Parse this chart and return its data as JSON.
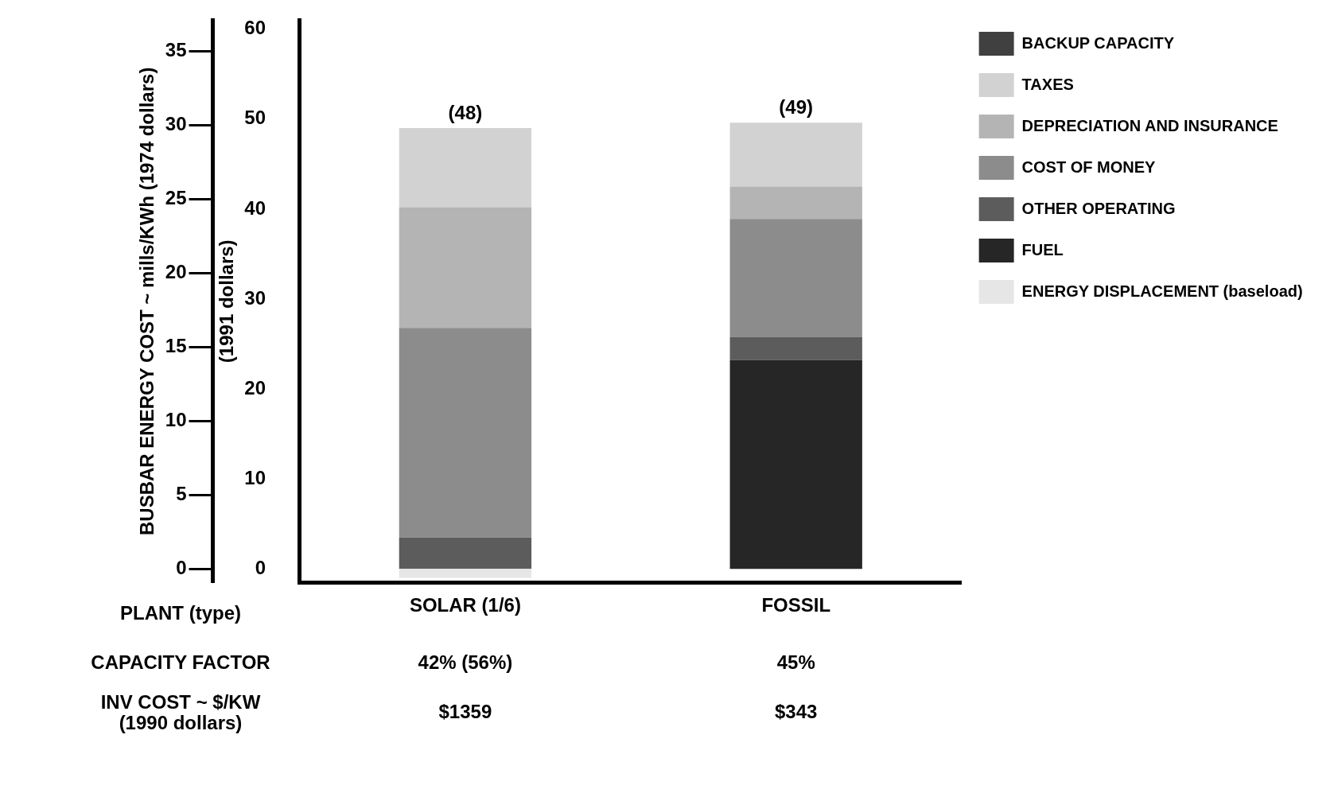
{
  "chart_data": {
    "type": "bar",
    "stacked": true,
    "categories": [
      "SOLAR (1/6)",
      "FOSSIL"
    ],
    "xlabel": "PLANT (type)",
    "ylabel": "(1991 dollars)",
    "y2label": "BUSBAR ENERGY COST ~ mills/KWh (1974 dollars)",
    "ylim": [
      -1.5,
      61
    ],
    "yticks": [
      0,
      10,
      20,
      30,
      40,
      50,
      60
    ],
    "y2lim": [
      -0.9,
      37.1
    ],
    "y2ticks": [
      0,
      5,
      10,
      15,
      20,
      25,
      30,
      35
    ],
    "series": [
      {
        "name": "ENERGY DISPLACEMENT (baseload)",
        "color": "#e6e6e6",
        "values": [
          -1,
          null
        ]
      },
      {
        "name": "FUEL",
        "color": "#262626",
        "values": [
          null,
          23.2
        ]
      },
      {
        "name": "OTHER OPERATING",
        "color": "#5c5c5c",
        "values": [
          3.5,
          2.6
        ]
      },
      {
        "name": "COST OF MONEY",
        "color": "#8c8c8c",
        "values": [
          23.3,
          13.1
        ]
      },
      {
        "name": "DEPRECIATION AND INSURANCE",
        "color": "#b4b4b4",
        "values": [
          13.4,
          3.6
        ]
      },
      {
        "name": "TAXES",
        "color": "#d2d2d2",
        "values": [
          8.8,
          7.1
        ]
      },
      {
        "name": "BACKUP CAPACITY",
        "color": "#404040",
        "values": [
          null,
          null
        ]
      }
    ],
    "totals": [
      "(48)",
      "(49)"
    ],
    "legend": "top right",
    "grid": false,
    "annotations": [
      "CAPACITY FACTOR",
      "42% (56%)",
      "45%",
      "INV COST ~ $/KW (1990 dollars)",
      "$1359",
      "$343"
    ]
  }
}
